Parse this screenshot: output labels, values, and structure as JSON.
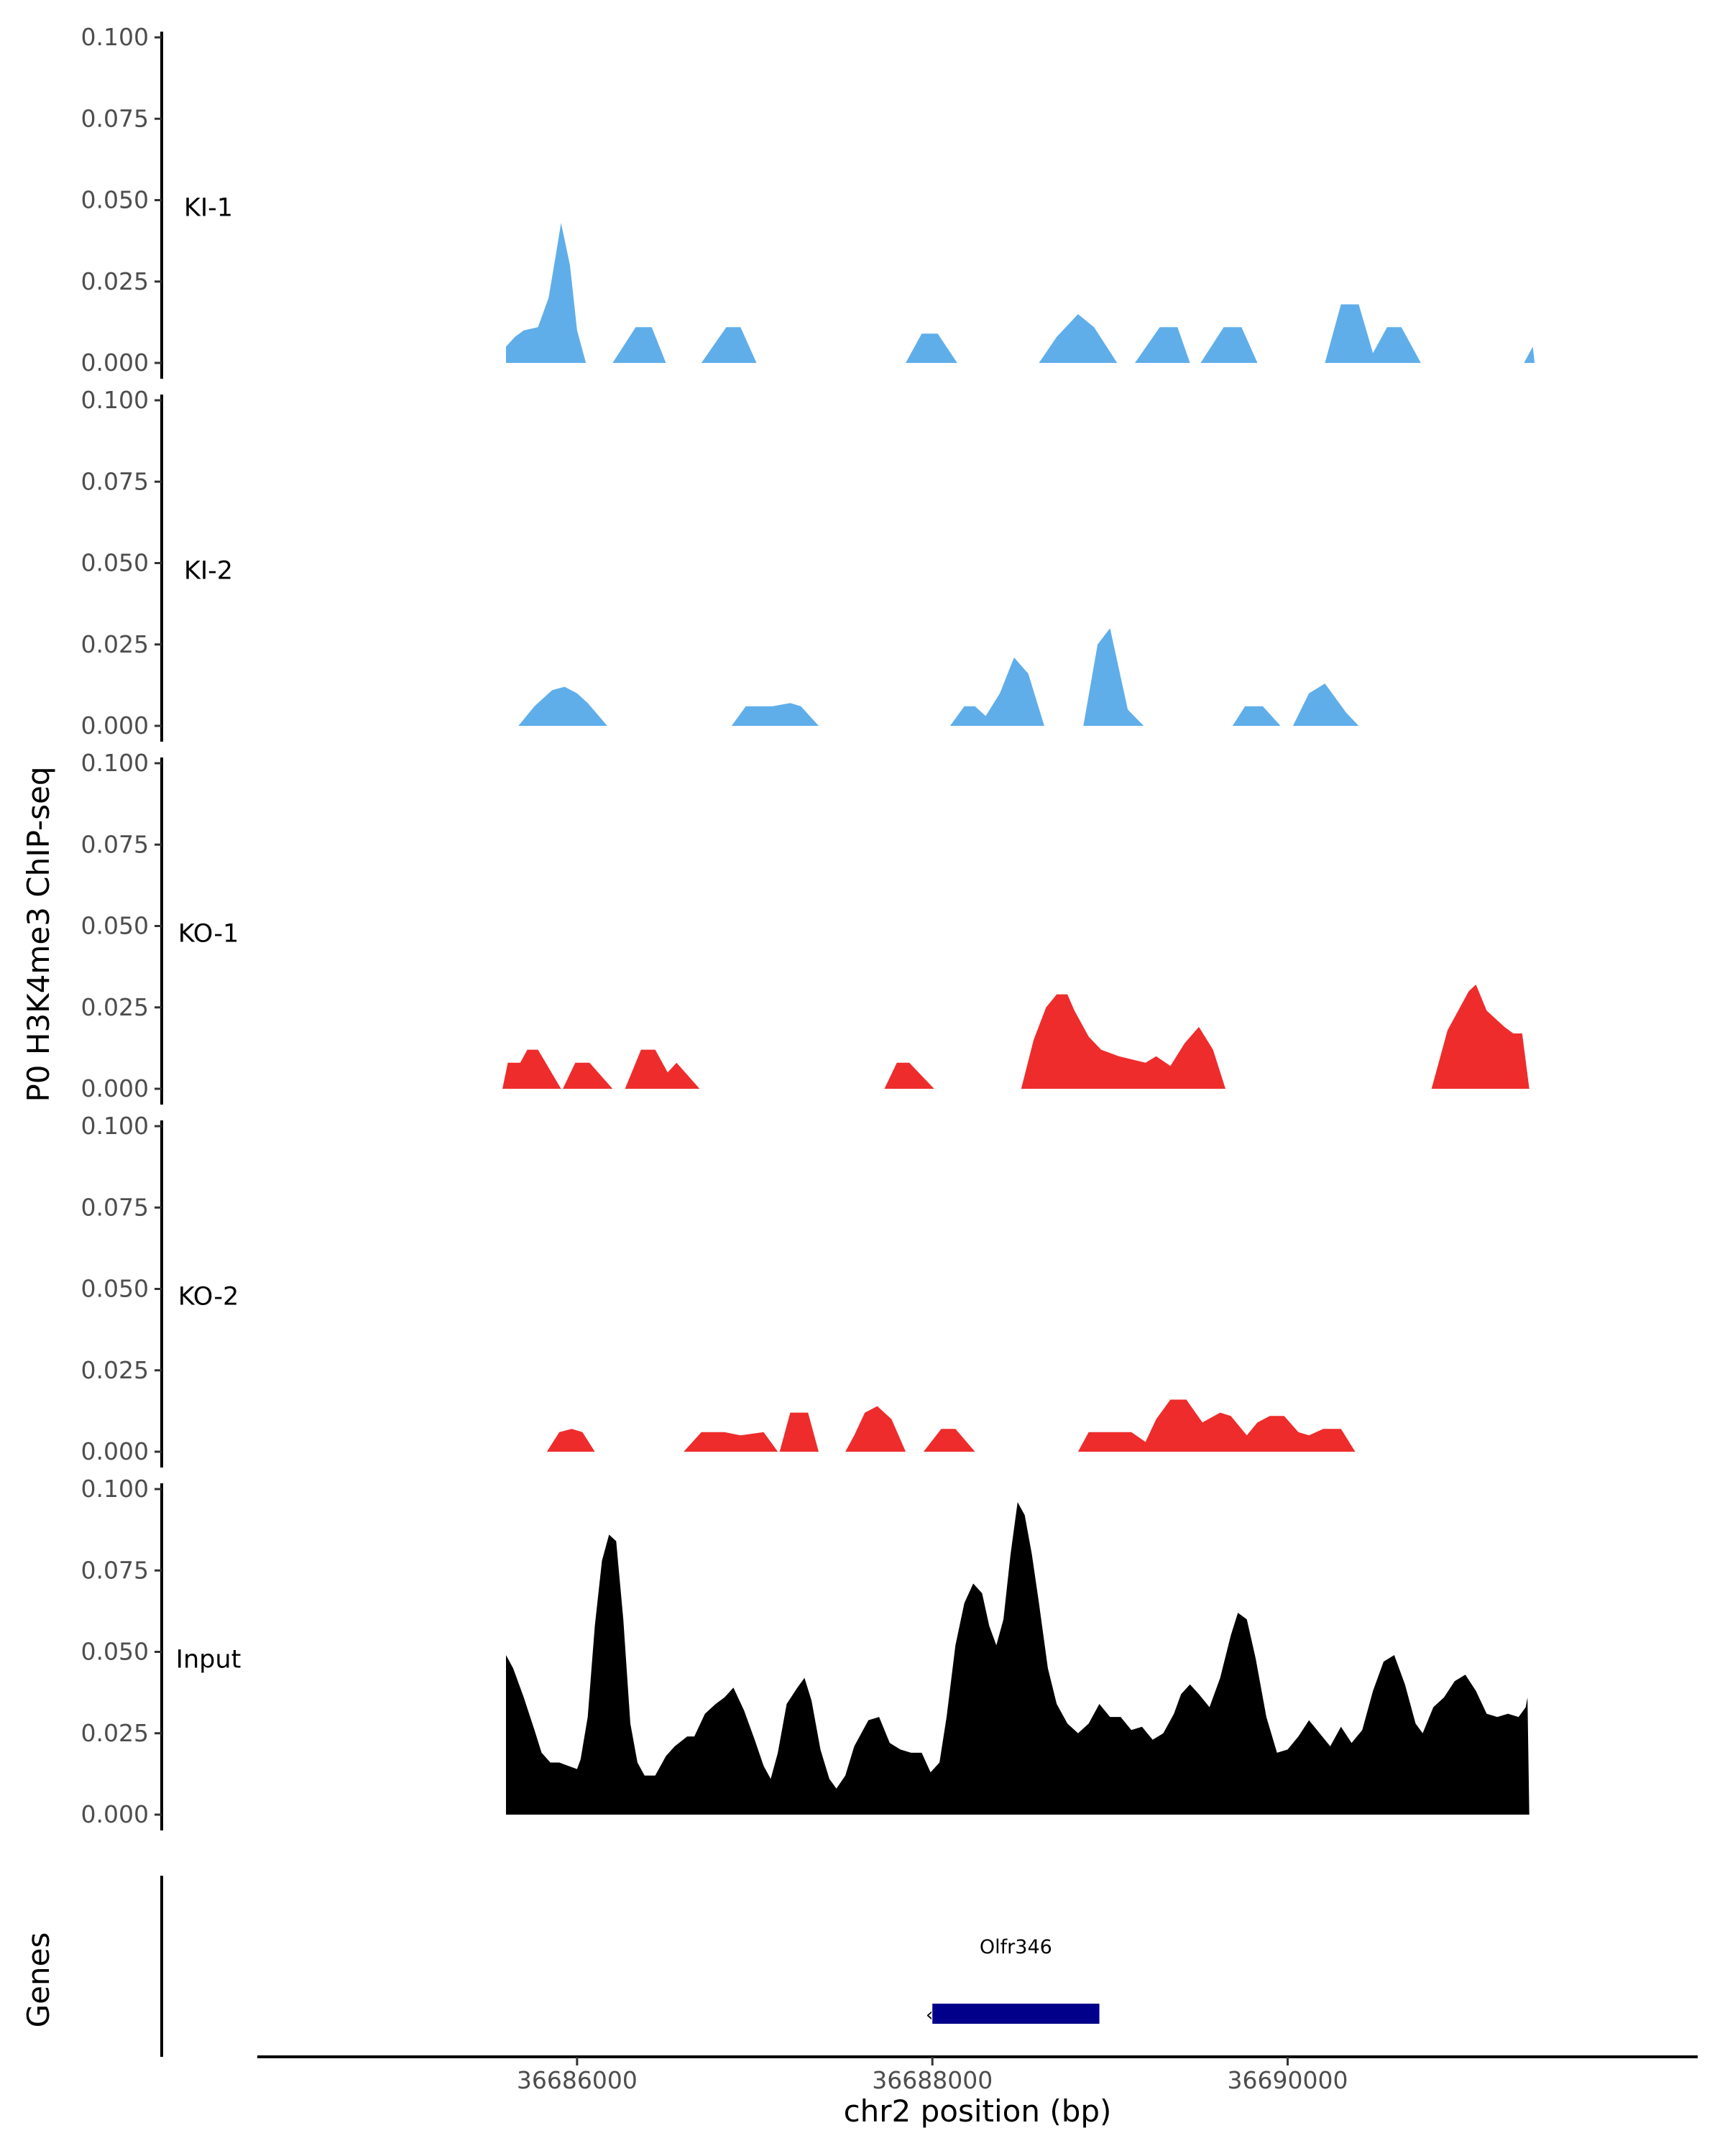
{
  "chart_data": {
    "type": "area",
    "ylabel": "P0 H3K4me3 ChIP-seq",
    "xlabel": "chr2 position (bp)",
    "genes_label": "Genes",
    "ylim": [
      0,
      0.1
    ],
    "y_ticks": [
      "0.000",
      "0.025",
      "0.050",
      "0.075",
      "0.100"
    ],
    "xlim": [
      36684200,
      36692300
    ],
    "x_ticks": [
      {
        "value": 36686000,
        "label": "36686000"
      },
      {
        "value": 36688000,
        "label": "36688000"
      },
      {
        "value": 36690000,
        "label": "36690000"
      }
    ],
    "colors": {
      "KI": "#5faeea",
      "KO": "#ee2c2c",
      "Input": "#000000",
      "gene": "#00008b"
    },
    "tracks": [
      {
        "name": "KI-1",
        "color": "#5faeea",
        "points": [
          [
            36685600,
            0
          ],
          [
            36685600,
            0.005
          ],
          [
            36685650,
            0.008
          ],
          [
            36685700,
            0.01
          ],
          [
            36685780,
            0.011
          ],
          [
            36685840,
            0.02
          ],
          [
            36685880,
            0.033
          ],
          [
            36685910,
            0.043
          ],
          [
            36685960,
            0.03
          ],
          [
            36686000,
            0.01
          ],
          [
            36686050,
            0
          ],
          [
            36686200,
            0
          ],
          [
            36686330,
            0.011
          ],
          [
            36686420,
            0.011
          ],
          [
            36686500,
            0
          ],
          [
            36686700,
            0
          ],
          [
            36686840,
            0.011
          ],
          [
            36686920,
            0.011
          ],
          [
            36687010,
            0
          ],
          [
            36687850,
            0
          ],
          [
            36687940,
            0.009
          ],
          [
            36688030,
            0.009
          ],
          [
            36688140,
            0
          ],
          [
            36688600,
            0
          ],
          [
            36688700,
            0.008
          ],
          [
            36688820,
            0.015
          ],
          [
            36688910,
            0.011
          ],
          [
            36689040,
            0
          ],
          [
            36689140,
            0
          ],
          [
            36689280,
            0.011
          ],
          [
            36689380,
            0.011
          ],
          [
            36689450,
            0
          ],
          [
            36689510,
            0
          ],
          [
            36689640,
            0.011
          ],
          [
            36689740,
            0.011
          ],
          [
            36689830,
            0
          ],
          [
            36690210,
            0
          ],
          [
            36690300,
            0.018
          ],
          [
            36690400,
            0.018
          ],
          [
            36690480,
            0.003
          ],
          [
            36690560,
            0.011
          ],
          [
            36690640,
            0.011
          ],
          [
            36690750,
            0
          ],
          [
            36691330,
            0
          ],
          [
            36691380,
            0.005
          ],
          [
            36691390,
            0
          ]
        ]
      },
      {
        "name": "KI-2",
        "color": "#5faeea",
        "points": [
          [
            36685670,
            0
          ],
          [
            36685760,
            0.006
          ],
          [
            36685860,
            0.011
          ],
          [
            36685930,
            0.012
          ],
          [
            36686000,
            0.01
          ],
          [
            36686060,
            0.007
          ],
          [
            36686170,
            0
          ],
          [
            36686870,
            0
          ],
          [
            36686950,
            0.006
          ],
          [
            36687100,
            0.006
          ],
          [
            36687200,
            0.007
          ],
          [
            36687260,
            0.006
          ],
          [
            36687360,
            0
          ],
          [
            36688100,
            0
          ],
          [
            36688180,
            0.006
          ],
          [
            36688240,
            0.006
          ],
          [
            36688300,
            0.003
          ],
          [
            36688380,
            0.01
          ],
          [
            36688460,
            0.021
          ],
          [
            36688540,
            0.016
          ],
          [
            36688630,
            0
          ],
          [
            36688850,
            0
          ],
          [
            36688930,
            0.025
          ],
          [
            36689000,
            0.03
          ],
          [
            36689100,
            0.005
          ],
          [
            36689190,
            0
          ],
          [
            36689690,
            0
          ],
          [
            36689760,
            0.006
          ],
          [
            36689860,
            0.006
          ],
          [
            36689960,
            0
          ],
          [
            36690030,
            0
          ],
          [
            36690120,
            0.01
          ],
          [
            36690210,
            0.013
          ],
          [
            36690330,
            0.004
          ],
          [
            36690400,
            0
          ]
        ]
      },
      {
        "name": "KO-1",
        "color": "#ee2c2c",
        "points": [
          [
            36685580,
            0
          ],
          [
            36685610,
            0.008
          ],
          [
            36685680,
            0.008
          ],
          [
            36685720,
            0.012
          ],
          [
            36685780,
            0.012
          ],
          [
            36685910,
            0
          ],
          [
            36685920,
            0
          ],
          [
            36685990,
            0.008
          ],
          [
            36686070,
            0.008
          ],
          [
            36686200,
            0
          ],
          [
            36686270,
            0
          ],
          [
            36686360,
            0.012
          ],
          [
            36686440,
            0.012
          ],
          [
            36686510,
            0.005
          ],
          [
            36686560,
            0.008
          ],
          [
            36686690,
            0
          ],
          [
            36687730,
            0
          ],
          [
            36687800,
            0.008
          ],
          [
            36687870,
            0.008
          ],
          [
            36688010,
            0
          ],
          [
            36688500,
            0
          ],
          [
            36688570,
            0.015
          ],
          [
            36688640,
            0.025
          ],
          [
            36688700,
            0.029
          ],
          [
            36688760,
            0.029
          ],
          [
            36688800,
            0.024
          ],
          [
            36688880,
            0.016
          ],
          [
            36688950,
            0.012
          ],
          [
            36689050,
            0.01
          ],
          [
            36689200,
            0.008
          ],
          [
            36689260,
            0.01
          ],
          [
            36689340,
            0.007
          ],
          [
            36689420,
            0.014
          ],
          [
            36689500,
            0.019
          ],
          [
            36689580,
            0.012
          ],
          [
            36689650,
            0
          ],
          [
            36690810,
            0
          ],
          [
            36690900,
            0.018
          ],
          [
            36691020,
            0.03
          ],
          [
            36691060,
            0.032
          ],
          [
            36691120,
            0.024
          ],
          [
            36691220,
            0.019
          ],
          [
            36691270,
            0.017
          ],
          [
            36691320,
            0.017
          ],
          [
            36691360,
            0
          ]
        ]
      },
      {
        "name": "KO-2",
        "color": "#ee2c2c",
        "points": [
          [
            36685830,
            0
          ],
          [
            36685900,
            0.006
          ],
          [
            36685970,
            0.007
          ],
          [
            36686030,
            0.006
          ],
          [
            36686100,
            0
          ],
          [
            36686600,
            0
          ],
          [
            36686700,
            0.006
          ],
          [
            36686830,
            0.006
          ],
          [
            36686920,
            0.005
          ],
          [
            36687050,
            0.006
          ],
          [
            36687130,
            0
          ],
          [
            36687140,
            0
          ],
          [
            36687200,
            0.012
          ],
          [
            36687300,
            0.012
          ],
          [
            36687360,
            0
          ],
          [
            36687510,
            0
          ],
          [
            36687560,
            0.005
          ],
          [
            36687620,
            0.012
          ],
          [
            36687690,
            0.014
          ],
          [
            36687770,
            0.01
          ],
          [
            36687850,
            0
          ],
          [
            36687950,
            0
          ],
          [
            36688050,
            0.007
          ],
          [
            36688130,
            0.007
          ],
          [
            36688240,
            0
          ],
          [
            36688820,
            0
          ],
          [
            36688880,
            0.006
          ],
          [
            36689020,
            0.006
          ],
          [
            36689120,
            0.006
          ],
          [
            36689200,
            0.003
          ],
          [
            36689260,
            0.01
          ],
          [
            36689340,
            0.016
          ],
          [
            36689430,
            0.016
          ],
          [
            36689520,
            0.009
          ],
          [
            36689620,
            0.012
          ],
          [
            36689680,
            0.011
          ],
          [
            36689770,
            0.005
          ],
          [
            36689830,
            0.009
          ],
          [
            36689900,
            0.011
          ],
          [
            36689980,
            0.011
          ],
          [
            36690060,
            0.006
          ],
          [
            36690120,
            0.005
          ],
          [
            36690200,
            0.007
          ],
          [
            36690300,
            0.007
          ],
          [
            36690380,
            0
          ]
        ]
      },
      {
        "name": "Input",
        "color": "#000000",
        "points": [
          [
            36685600,
            0
          ],
          [
            36685600,
            0.049
          ],
          [
            36685640,
            0.045
          ],
          [
            36685700,
            0.036
          ],
          [
            36685760,
            0.026
          ],
          [
            36685800,
            0.019
          ],
          [
            36685850,
            0.016
          ],
          [
            36685900,
            0.016
          ],
          [
            36685950,
            0.015
          ],
          [
            36686000,
            0.014
          ],
          [
            36686020,
            0.017
          ],
          [
            36686060,
            0.03
          ],
          [
            36686100,
            0.058
          ],
          [
            36686140,
            0.078
          ],
          [
            36686180,
            0.086
          ],
          [
            36686220,
            0.084
          ],
          [
            36686260,
            0.06
          ],
          [
            36686300,
            0.028
          ],
          [
            36686340,
            0.016
          ],
          [
            36686380,
            0.012
          ],
          [
            36686440,
            0.012
          ],
          [
            36686500,
            0.018
          ],
          [
            36686550,
            0.021
          ],
          [
            36686620,
            0.024
          ],
          [
            36686660,
            0.024
          ],
          [
            36686720,
            0.031
          ],
          [
            36686780,
            0.034
          ],
          [
            36686830,
            0.036
          ],
          [
            36686880,
            0.039
          ],
          [
            36686940,
            0.032
          ],
          [
            36687000,
            0.023
          ],
          [
            36687050,
            0.015
          ],
          [
            36687090,
            0.011
          ],
          [
            36687130,
            0.019
          ],
          [
            36687180,
            0.034
          ],
          [
            36687240,
            0.039
          ],
          [
            36687280,
            0.042
          ],
          [
            36687320,
            0.035
          ],
          [
            36687370,
            0.02
          ],
          [
            36687420,
            0.011
          ],
          [
            36687460,
            0.008
          ],
          [
            36687510,
            0.012
          ],
          [
            36687560,
            0.021
          ],
          [
            36687640,
            0.029
          ],
          [
            36687700,
            0.03
          ],
          [
            36687760,
            0.022
          ],
          [
            36687820,
            0.02
          ],
          [
            36687880,
            0.019
          ],
          [
            36687940,
            0.019
          ],
          [
            36687990,
            0.013
          ],
          [
            36688040,
            0.016
          ],
          [
            36688080,
            0.03
          ],
          [
            36688130,
            0.052
          ],
          [
            36688180,
            0.065
          ],
          [
            36688230,
            0.071
          ],
          [
            36688280,
            0.068
          ],
          [
            36688320,
            0.058
          ],
          [
            36688360,
            0.052
          ],
          [
            36688400,
            0.06
          ],
          [
            36688440,
            0.08
          ],
          [
            36688480,
            0.096
          ],
          [
            36688520,
            0.092
          ],
          [
            36688560,
            0.08
          ],
          [
            36688600,
            0.065
          ],
          [
            36688650,
            0.045
          ],
          [
            36688700,
            0.034
          ],
          [
            36688760,
            0.028
          ],
          [
            36688820,
            0.025
          ],
          [
            36688880,
            0.028
          ],
          [
            36688940,
            0.034
          ],
          [
            36689000,
            0.03
          ],
          [
            36689060,
            0.03
          ],
          [
            36689120,
            0.026
          ],
          [
            36689180,
            0.027
          ],
          [
            36689240,
            0.023
          ],
          [
            36689300,
            0.025
          ],
          [
            36689360,
            0.031
          ],
          [
            36689400,
            0.037
          ],
          [
            36689450,
            0.04
          ],
          [
            36689500,
            0.037
          ],
          [
            36689560,
            0.033
          ],
          [
            36689620,
            0.042
          ],
          [
            36689680,
            0.055
          ],
          [
            36689720,
            0.062
          ],
          [
            36689770,
            0.06
          ],
          [
            36689820,
            0.048
          ],
          [
            36689880,
            0.03
          ],
          [
            36689940,
            0.019
          ],
          [
            36690000,
            0.02
          ],
          [
            36690060,
            0.024
          ],
          [
            36690120,
            0.029
          ],
          [
            36690180,
            0.025
          ],
          [
            36690240,
            0.021
          ],
          [
            36690300,
            0.027
          ],
          [
            36690360,
            0.022
          ],
          [
            36690420,
            0.026
          ],
          [
            36690480,
            0.038
          ],
          [
            36690540,
            0.047
          ],
          [
            36690600,
            0.049
          ],
          [
            36690660,
            0.04
          ],
          [
            36690720,
            0.028
          ],
          [
            36690760,
            0.025
          ],
          [
            36690820,
            0.033
          ],
          [
            36690880,
            0.036
          ],
          [
            36690940,
            0.041
          ],
          [
            36691000,
            0.043
          ],
          [
            36691060,
            0.038
          ],
          [
            36691120,
            0.031
          ],
          [
            36691180,
            0.03
          ],
          [
            36691240,
            0.031
          ],
          [
            36691300,
            0.03
          ],
          [
            36691340,
            0.033
          ],
          [
            36691350,
            0.036
          ],
          [
            36691360,
            0
          ]
        ]
      }
    ],
    "gene": {
      "name": "Olfr346",
      "start": 36688000,
      "end": 36688940,
      "strand": "-"
    }
  }
}
